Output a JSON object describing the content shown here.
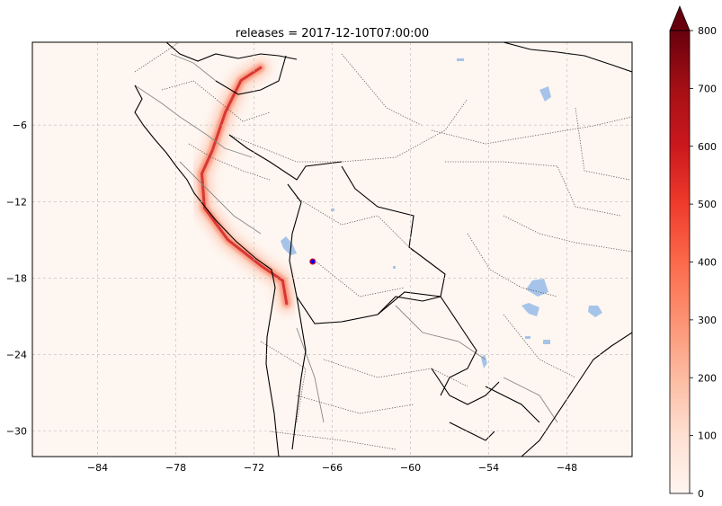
{
  "title": "releases = 2017-12-10T07:00:00",
  "map": {
    "projection": "PlateCarree",
    "lon_range": [
      -89.0,
      -43.0
    ],
    "lat_range": [
      -32.0,
      0.5
    ],
    "lon_ticks": [
      -84,
      -78,
      -72,
      -66,
      -60,
      -54,
      -48
    ],
    "lat_ticks": [
      -6,
      -12,
      -18,
      -24,
      -30
    ],
    "lon_tick_labels": [
      "−84",
      "−78",
      "−72",
      "−66",
      "−60",
      "−54",
      "−48"
    ],
    "lat_tick_labels": [
      "−6",
      "−12",
      "−18",
      "−24",
      "−30"
    ],
    "gridlines": true,
    "features": [
      "coastlines",
      "country borders",
      "state borders",
      "lakes"
    ],
    "release_point": {
      "lon": -67.5,
      "lat": -16.7,
      "color": "#0000ff"
    },
    "plume": {
      "description": "concentration field along the Andes",
      "path": [
        [
          -71.5,
          -1.5
        ],
        [
          -73.0,
          -2.5
        ],
        [
          -74.2,
          -5.0
        ],
        [
          -75.2,
          -8.0
        ],
        [
          -76.0,
          -9.8
        ],
        [
          -75.8,
          -12.5
        ],
        [
          -74.0,
          -15.0
        ],
        [
          -71.5,
          -17.0
        ],
        [
          -69.8,
          -18.2
        ],
        [
          -69.5,
          -20.0
        ]
      ]
    }
  },
  "colorbar": {
    "cmap": "Reds",
    "min": 0,
    "max": 800,
    "extend": "max",
    "ticks": [
      "0",
      "100",
      "200",
      "300",
      "400",
      "500",
      "600",
      "700",
      "800"
    ],
    "colors": [
      "#fff5f0",
      "#fee0d2",
      "#fcbba1",
      "#fc9272",
      "#fb6a4a",
      "#ef3b2c",
      "#cb181d",
      "#a50f15",
      "#67000d"
    ]
  }
}
